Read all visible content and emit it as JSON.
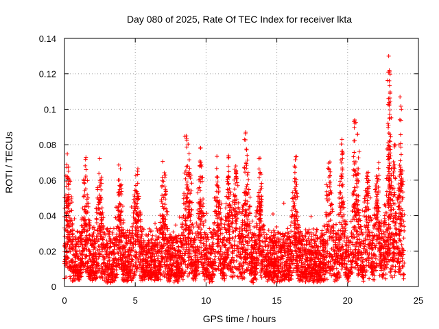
{
  "chart_data": {
    "type": "scatter",
    "title": "Day 080 of 2025, Rate Of TEC Index for receiver lkta",
    "xlabel": "GPS time / hours",
    "ylabel": "ROTI / TECUs",
    "xlim": [
      0,
      25
    ],
    "ylim": [
      0,
      0.14
    ],
    "xticks": [
      0,
      5,
      10,
      15,
      20,
      25
    ],
    "xtick_labels": [
      "0",
      "5",
      "10",
      "15",
      "20",
      "25"
    ],
    "yticks": [
      0,
      0.02,
      0.04,
      0.06,
      0.08,
      0.1,
      0.12,
      0.14
    ],
    "ytick_labels": [
      "0",
      "0.02",
      "0.04",
      "0.06",
      "0.08",
      "0.1",
      "0.12",
      "0.14"
    ],
    "grid": true,
    "marker": "+",
    "color": "#ff0000",
    "data_range_hours": [
      0,
      24
    ],
    "series": [
      {
        "name": "ROTI",
        "baseline_range": [
          0.005,
          0.03
        ],
        "peaks": [
          {
            "x": 0.2,
            "y": 0.062
          },
          {
            "x": 0.3,
            "y": 0.052
          },
          {
            "x": 1.5,
            "y": 0.055
          },
          {
            "x": 2.5,
            "y": 0.049
          },
          {
            "x": 3.9,
            "y": 0.047
          },
          {
            "x": 5.1,
            "y": 0.045
          },
          {
            "x": 7.0,
            "y": 0.044
          },
          {
            "x": 8.6,
            "y": 0.085
          },
          {
            "x": 8.8,
            "y": 0.075
          },
          {
            "x": 9.6,
            "y": 0.07
          },
          {
            "x": 10.8,
            "y": 0.059
          },
          {
            "x": 11.6,
            "y": 0.073
          },
          {
            "x": 12.1,
            "y": 0.068
          },
          {
            "x": 12.8,
            "y": 0.087
          },
          {
            "x": 12.9,
            "y": 0.074
          },
          {
            "x": 13.8,
            "y": 0.046
          },
          {
            "x": 16.3,
            "y": 0.054
          },
          {
            "x": 18.7,
            "y": 0.066
          },
          {
            "x": 19.6,
            "y": 0.083
          },
          {
            "x": 20.5,
            "y": 0.094
          },
          {
            "x": 20.7,
            "y": 0.086
          },
          {
            "x": 21.4,
            "y": 0.062
          },
          {
            "x": 22.1,
            "y": 0.052
          },
          {
            "x": 22.9,
            "y": 0.13
          },
          {
            "x": 22.95,
            "y": 0.122
          },
          {
            "x": 23.0,
            "y": 0.109
          },
          {
            "x": 22.85,
            "y": 0.092
          },
          {
            "x": 23.3,
            "y": 0.08
          },
          {
            "x": 23.7,
            "y": 0.107
          },
          {
            "x": 23.8,
            "y": 0.1
          }
        ]
      }
    ]
  }
}
